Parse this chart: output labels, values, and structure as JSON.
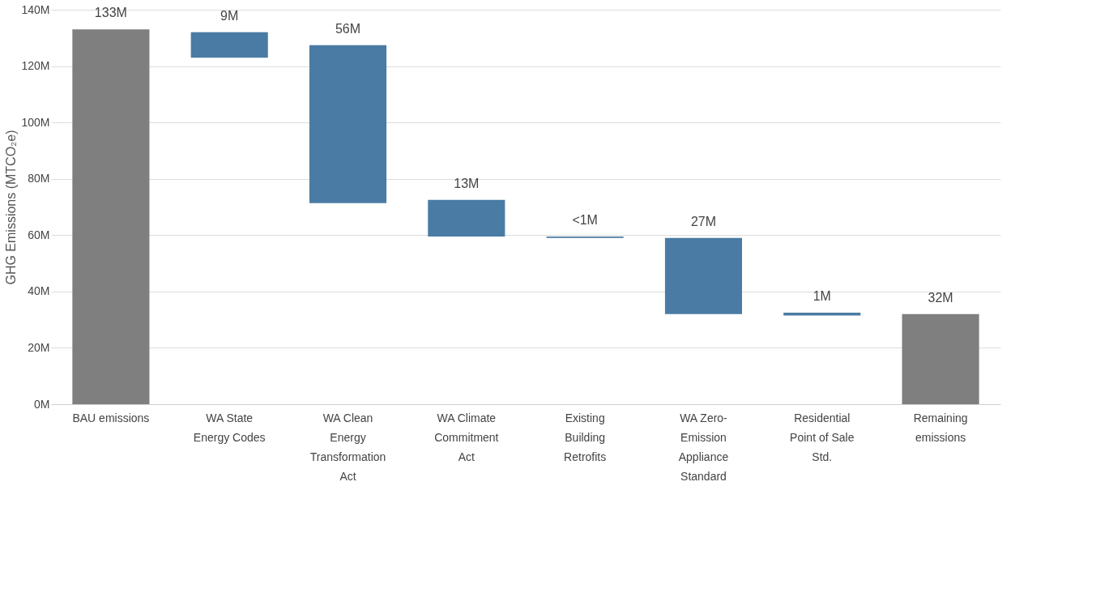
{
  "chart_data": {
    "type": "bar",
    "ylabel": "GHG Emissions (MTCO₂e)",
    "categories": [
      "BAU emissions",
      "WA State Energy Codes",
      "WA Clean Energy Transformation Act",
      "WA Climate Commitment Act",
      "Existing Building Retrofits",
      "WA Zero-Emission Appliance Standard",
      "Residential Point of Sale Std.",
      "Remaining emissions"
    ],
    "values": [
      133,
      9,
      56,
      13,
      0.5,
      27,
      1,
      32
    ],
    "base": [
      0,
      123,
      71.4,
      59.5,
      59,
      32,
      31.5,
      0
    ],
    "colors": [
      "#7f7f7f",
      "#4a7ba4",
      "#4a7ba4",
      "#4a7ba4",
      "#4a7ba4",
      "#4a7ba4",
      "#4a7ba4",
      "#7f7f7f"
    ],
    "value_labels": [
      "133M",
      "9M",
      "56M",
      "13M",
      "<1M",
      "27M",
      "1M",
      "32M"
    ],
    "ylim": [
      0,
      140
    ],
    "yticks": [
      {
        "value": 0,
        "label": "0M"
      },
      {
        "value": 20,
        "label": "20M"
      },
      {
        "value": 40,
        "label": "40M"
      },
      {
        "value": 60,
        "label": "60M"
      },
      {
        "value": 80,
        "label": "80M"
      },
      {
        "value": 100,
        "label": "100M"
      },
      {
        "value": 120,
        "label": "120M"
      },
      {
        "value": 140,
        "label": "140M"
      }
    ],
    "grid": "y"
  }
}
